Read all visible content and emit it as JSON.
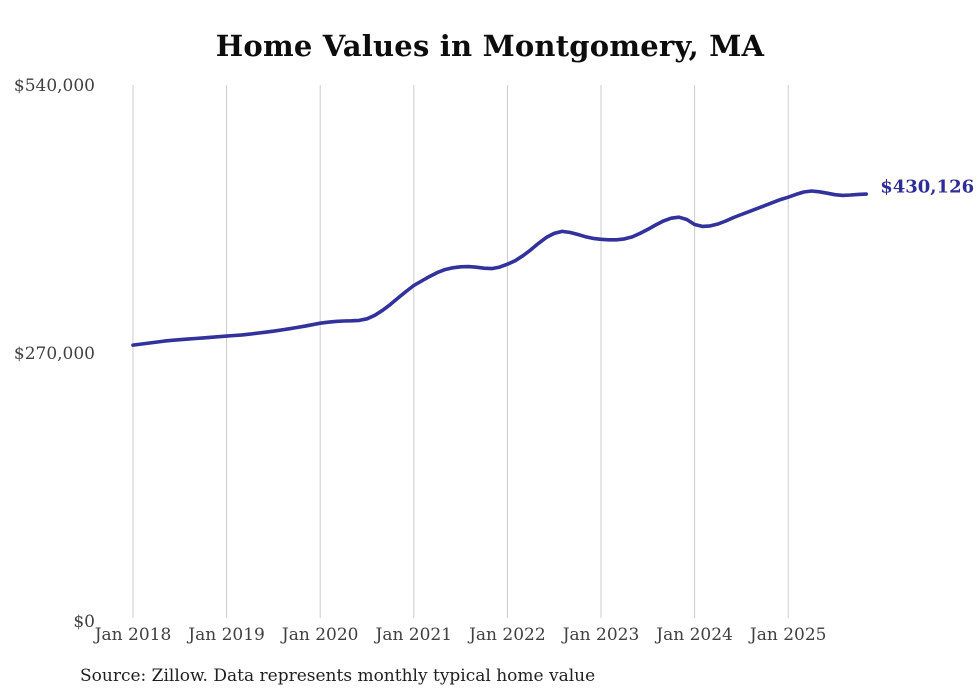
{
  "chart_data": {
    "type": "line",
    "title": "Home Values in Montgomery, MA",
    "source_note": "Source: Zillow. Data represents monthly typical home value",
    "end_label": "$430,126",
    "final_value": 430126,
    "frequency": "monthly",
    "start_month": "Jan 2018",
    "ylim": [
      0,
      540000
    ],
    "grid": "vertical-only",
    "legend": "none",
    "line_color": "#32329c",
    "label_color": "#2d2d96",
    "gridline_color": "#cccccc",
    "tick_text_color": "#404040",
    "y_ticks": [
      {
        "value": 540000,
        "label": "$540,000"
      },
      {
        "value": 270000,
        "label": "$270,000"
      },
      {
        "value": 0,
        "label": "$0"
      }
    ],
    "x_ticks": [
      {
        "month_index": 0,
        "label": "Jan 2018"
      },
      {
        "month_index": 12,
        "label": "Jan 2019"
      },
      {
        "month_index": 24,
        "label": "Jan 2020"
      },
      {
        "month_index": 36,
        "label": "Jan 2021"
      },
      {
        "month_index": 48,
        "label": "Jan 2022"
      },
      {
        "month_index": 60,
        "label": "Jan 2023"
      },
      {
        "month_index": 72,
        "label": "Jan 2024"
      },
      {
        "month_index": 84,
        "label": "Jan 2025"
      }
    ],
    "series": [
      {
        "name": "Typical home value",
        "values": [
          278000,
          279000,
          280000,
          281000,
          282000,
          282800,
          283400,
          284000,
          284600,
          285200,
          285800,
          286400,
          287000,
          287600,
          288200,
          289000,
          290000,
          291000,
          292000,
          293200,
          294400,
          295700,
          297000,
          298500,
          300000,
          301000,
          301800,
          302200,
          302400,
          302800,
          304500,
          308000,
          313000,
          319000,
          325500,
          332000,
          338000,
          342500,
          347000,
          351000,
          354000,
          355800,
          356800,
          357000,
          356400,
          355400,
          355000,
          356500,
          359500,
          363000,
          368000,
          374000,
          380500,
          386500,
          390500,
          392500,
          391500,
          389500,
          387200,
          385500,
          384500,
          384000,
          384000,
          385000,
          387000,
          390500,
          394500,
          399000,
          403000,
          405800,
          406800,
          404500,
          399500,
          397500,
          398000,
          400000,
          403000,
          406500,
          409500,
          412500,
          415500,
          418500,
          421500,
          424500,
          427000,
          429800,
          432200,
          433200,
          432400,
          431000,
          429500,
          428800,
          429200,
          429800,
          430126
        ]
      }
    ]
  }
}
